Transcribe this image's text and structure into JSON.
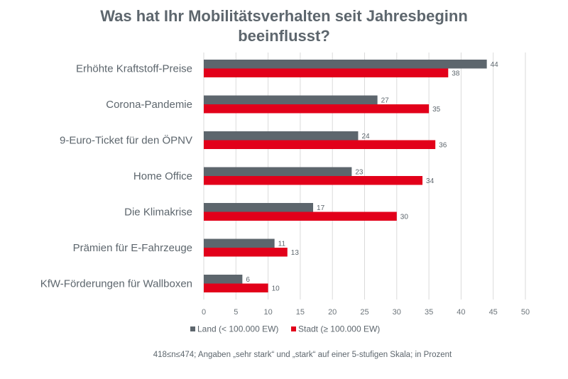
{
  "chart_data": {
    "type": "bar",
    "orientation": "horizontal",
    "title_lines": [
      "Was hat Ihr Mobilitätsverhalten seit Jahresbeginn",
      "beeinflusst?"
    ],
    "categories": [
      "Erhöhte Kraftstoff-Preise",
      "Corona-Pandemie",
      "9-Euro-Ticket für den ÖPNV",
      "Home Office",
      "Die Klimakrise",
      "Prämien für E-Fahrzeuge",
      "KfW-Förderungen für Wallboxen"
    ],
    "series": [
      {
        "name": "Land (< 100.000 EW)",
        "color": "#5d666d",
        "values": [
          44,
          27,
          24,
          23,
          17,
          11,
          6
        ]
      },
      {
        "name": "Stadt (≥ 100.000 EW)",
        "color": "#e2001a",
        "values": [
          38,
          35,
          36,
          34,
          30,
          13,
          10
        ]
      }
    ],
    "xlim": [
      0,
      50
    ],
    "xticks": [
      0,
      5,
      10,
      15,
      20,
      25,
      30,
      35,
      40,
      45,
      50
    ],
    "grid": true,
    "legend_position": "bottom-left",
    "footnote": "418≤n≤474; Angaben „sehr stark“ und „stark“ auf einer 5-stufigen Skala; in Prozent"
  }
}
